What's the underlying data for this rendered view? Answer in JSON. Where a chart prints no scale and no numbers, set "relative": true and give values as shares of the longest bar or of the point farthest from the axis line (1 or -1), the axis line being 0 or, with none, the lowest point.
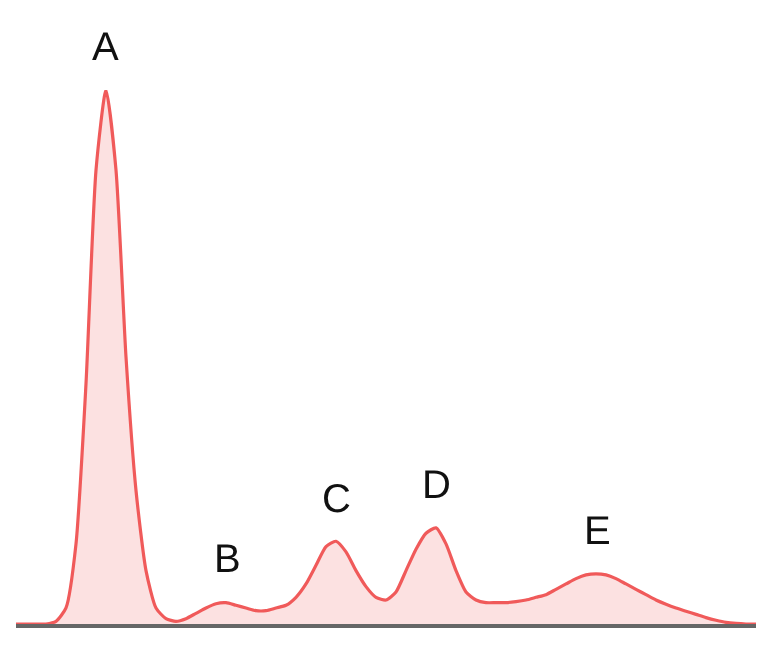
{
  "chart_data": {
    "type": "area",
    "relative": true,
    "categories": [
      null,
      null,
      null,
      null,
      null,
      null,
      null,
      null,
      null,
      null,
      null,
      null,
      null,
      null,
      null,
      null,
      null,
      null,
      null,
      null,
      null,
      null,
      null,
      null,
      null,
      null,
      null,
      null,
      null,
      null,
      null,
      null,
      null,
      null,
      null,
      null,
      null,
      null,
      null,
      null,
      null,
      null,
      null,
      null,
      null,
      null,
      null,
      null,
      null,
      null,
      null,
      null,
      null,
      null,
      null,
      null,
      null,
      null,
      null,
      null,
      null,
      null,
      null,
      null,
      null,
      null,
      null,
      null,
      null,
      null,
      null,
      null,
      null,
      null,
      null
    ],
    "series": [
      {
        "color": "#f05a5a",
        "values": [
          0,
          0,
          0,
          0,
          0.005,
          0.03,
          0.15,
          0.45,
          0.85,
          1.0,
          0.85,
          0.5,
          0.25,
          0.1,
          0.03,
          0.01,
          0.005,
          0.01,
          0.02,
          0.03,
          0.038,
          0.04,
          0.035,
          0.03,
          0.025,
          0.025,
          0.03,
          0.035,
          0.05,
          0.075,
          0.11,
          0.145,
          0.155,
          0.135,
          0.1,
          0.07,
          0.05,
          0.045,
          0.06,
          0.1,
          0.14,
          0.17,
          0.18,
          0.15,
          0.1,
          0.06,
          0.045,
          0.04,
          0.04,
          0.04,
          0.042,
          0.045,
          0.05,
          0.055,
          0.065,
          0.075,
          0.085,
          0.092,
          0.094,
          0.092,
          0.085,
          0.075,
          0.065,
          0.055,
          0.045,
          0.037,
          0.03,
          0.024,
          0.018,
          0.012,
          0.007,
          0.003,
          0.001,
          0,
          0
        ]
      }
    ],
    "annotations": [
      {
        "text": "A",
        "y": 1.0
      },
      {
        "text": "B",
        "y": 0.04
      },
      {
        "text": "C",
        "y": 0.155
      },
      {
        "text": "D",
        "y": 0.18
      },
      {
        "text": "E",
        "y": 0.094
      }
    ]
  }
}
